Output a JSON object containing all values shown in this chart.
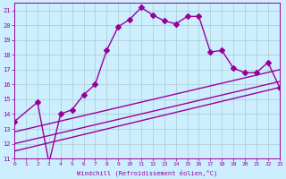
{
  "xlabel": "Windchill (Refroidissement éolien,°C)",
  "ylim": [
    11,
    21.5
  ],
  "xlim": [
    0,
    23
  ],
  "xticks": [
    0,
    1,
    2,
    3,
    4,
    5,
    6,
    7,
    8,
    9,
    10,
    11,
    12,
    13,
    14,
    15,
    16,
    17,
    18,
    19,
    20,
    21,
    22,
    23
  ],
  "yticks": [
    11,
    12,
    13,
    14,
    15,
    16,
    17,
    18,
    19,
    20,
    21
  ],
  "bg_color": "#cceeff",
  "line_color": "#990099",
  "grid_color": "#aacccc",
  "series1_x": [
    0,
    2,
    3,
    4,
    5,
    6,
    7,
    8,
    9,
    10,
    11,
    12,
    13,
    14,
    15,
    16,
    17,
    18,
    19,
    20,
    21,
    22,
    23
  ],
  "series1_y": [
    13.5,
    14.8,
    10.7,
    14.0,
    14.3,
    15.3,
    16.0,
    18.3,
    19.9,
    20.4,
    21.2,
    20.7,
    20.3,
    20.1,
    20.6,
    20.6,
    18.2,
    18.3,
    17.1,
    16.8,
    16.8,
    17.5,
    15.8
  ],
  "series2_x": [
    0,
    23
  ],
  "series2_y": [
    11.5,
    15.8
  ],
  "series3_x": [
    0,
    23
  ],
  "series3_y": [
    12.0,
    16.2
  ],
  "series4_x": [
    0,
    23
  ],
  "series4_y": [
    12.8,
    17.0
  ],
  "marker": "D",
  "marker_size": 3,
  "linewidth": 1.0
}
